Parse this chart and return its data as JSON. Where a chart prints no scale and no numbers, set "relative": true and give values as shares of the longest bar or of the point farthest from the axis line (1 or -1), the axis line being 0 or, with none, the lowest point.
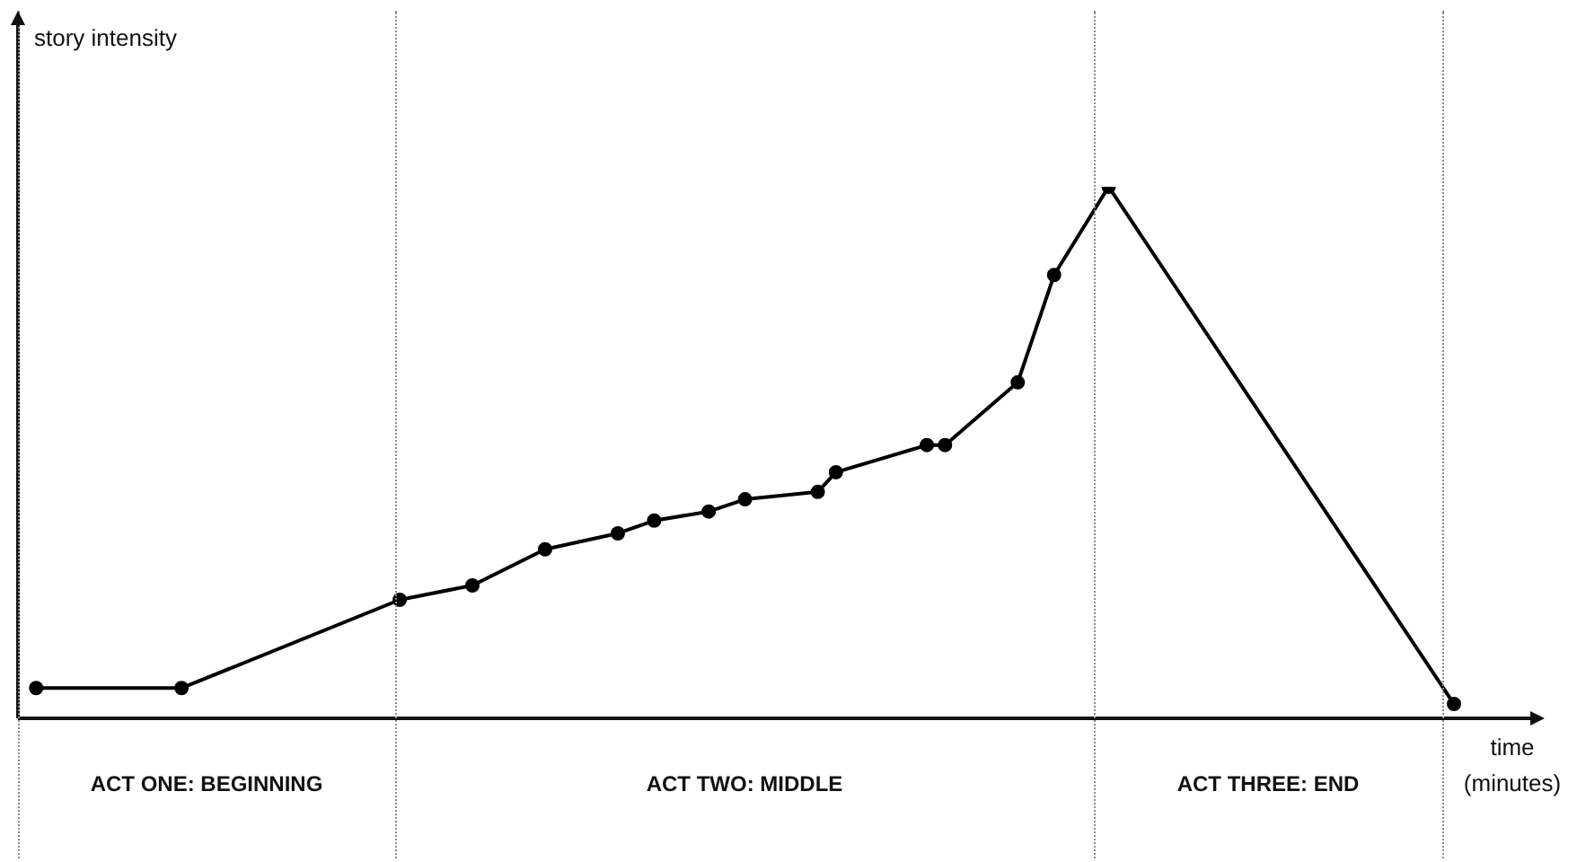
{
  "chart_data": {
    "type": "line",
    "relative": true,
    "xlabel": "time (minutes)",
    "categories": [
      null,
      null,
      null,
      null,
      null,
      null,
      null,
      null,
      null,
      null,
      null,
      null,
      null,
      null,
      null,
      null,
      null,
      null,
      null,
      null,
      null,
      null,
      null,
      null,
      null,
      null,
      null,
      null,
      null,
      null,
      null,
      null,
      null,
      null,
      null,
      null,
      null,
      null,
      null,
      null,
      null,
      null,
      null,
      null,
      null,
      null,
      null,
      null,
      null,
      null,
      null,
      null,
      null,
      null,
      null,
      null,
      null,
      null,
      null,
      null,
      null,
      null,
      null,
      null,
      null,
      null,
      null,
      null,
      null,
      null,
      null,
      null,
      null,
      null,
      null,
      null,
      null,
      null,
      null,
      null,
      null,
      null,
      null,
      null
    ],
    "legend": false,
    "marker": "circle",
    "line_style": "solid",
    "series": [
      {
        "color": "#000000",
        "values": [
          null,
          0.057,
          null,
          null,
          null,
          null,
          null,
          null,
          null,
          0.057,
          null,
          null,
          null,
          null,
          null,
          null,
          null,
          null,
          null,
          null,
          null,
          0.223,
          null,
          null,
          null,
          0.25,
          null,
          null,
          null,
          0.318,
          null,
          null,
          null,
          0.348,
          null,
          0.372,
          null,
          null,
          0.389,
          null,
          0.412,
          null,
          null,
          null,
          0.426,
          0.463,
          null,
          null,
          null,
          null,
          0.514,
          0.514,
          null,
          null,
          null,
          0.632,
          null,
          0.834,
          null,
          null,
          1,
          null,
          null,
          null,
          null,
          null,
          null,
          null,
          null,
          null,
          null,
          null,
          null,
          null,
          null,
          null,
          null,
          null,
          null,
          0.027,
          null,
          null,
          null,
          null
        ]
      }
    ],
    "annotations": [
      "story intensity",
      "ACT ONE: BEGINNING",
      "ACT TWO: MIDDLE",
      "ACT THREE: END"
    ]
  }
}
